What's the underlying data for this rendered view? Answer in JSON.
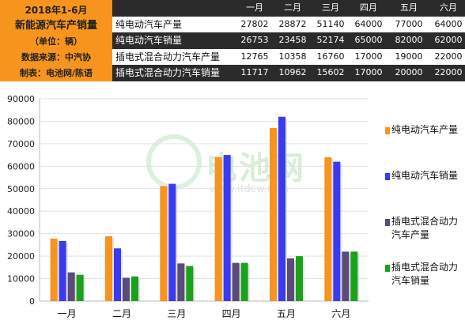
{
  "header": {
    "left_lines": [
      "2018年1-6月",
      "新能源汽车产销量",
      "（单位：辆）",
      "数据来源：中汽协",
      "制表：电池网/陈语"
    ],
    "months": [
      "一月",
      "二月",
      "三月",
      "四月",
      "五月",
      "六月"
    ],
    "rows": [
      {
        "label": "纯电动汽车产量",
        "values": [
          "27802",
          "28872",
          "51140",
          "64000",
          "77000",
          "64000"
        ]
      },
      {
        "label": "纯电动汽车销量",
        "values": [
          "26753",
          "23458",
          "52174",
          "65000",
          "82000",
          "62000"
        ]
      },
      {
        "label": "插电式混合动力汽车产量",
        "values": [
          "12765",
          "10358",
          "16760",
          "17000",
          "19000",
          "22000"
        ]
      },
      {
        "label": "插电式混合动力汽车销量",
        "values": [
          "11717",
          "10962",
          "15602",
          "17000",
          "20000",
          "22000"
        ]
      }
    ]
  },
  "watermark": {
    "text": "电池网",
    "url": "www.itdcw.com"
  },
  "chart_data": {
    "type": "bar",
    "categories": [
      "一月",
      "二月",
      "三月",
      "四月",
      "五月",
      "六月"
    ],
    "series": [
      {
        "name": "纯电动汽车产量",
        "values": [
          27802,
          28872,
          51140,
          64000,
          77000,
          64000
        ],
        "color": "#f7931e"
      },
      {
        "name": "纯电动汽车销量",
        "values": [
          26753,
          23458,
          52174,
          65000,
          82000,
          62000
        ],
        "color": "#3a3af0"
      },
      {
        "name": "插电式混合动力汽车产量",
        "values": [
          12765,
          10358,
          16760,
          17000,
          19000,
          22000
        ],
        "color": "#5b4a7a"
      },
      {
        "name": "插电式混合动力汽车销量",
        "values": [
          11717,
          10962,
          15602,
          17000,
          20000,
          22000
        ],
        "color": "#1aa31a"
      }
    ],
    "yticks": [
      "0",
      "10000",
      "20000",
      "30000",
      "40000",
      "50000",
      "60000",
      "70000",
      "80000",
      "90000"
    ],
    "ylim": [
      0,
      90000
    ],
    "grid": true,
    "legend": "right"
  }
}
